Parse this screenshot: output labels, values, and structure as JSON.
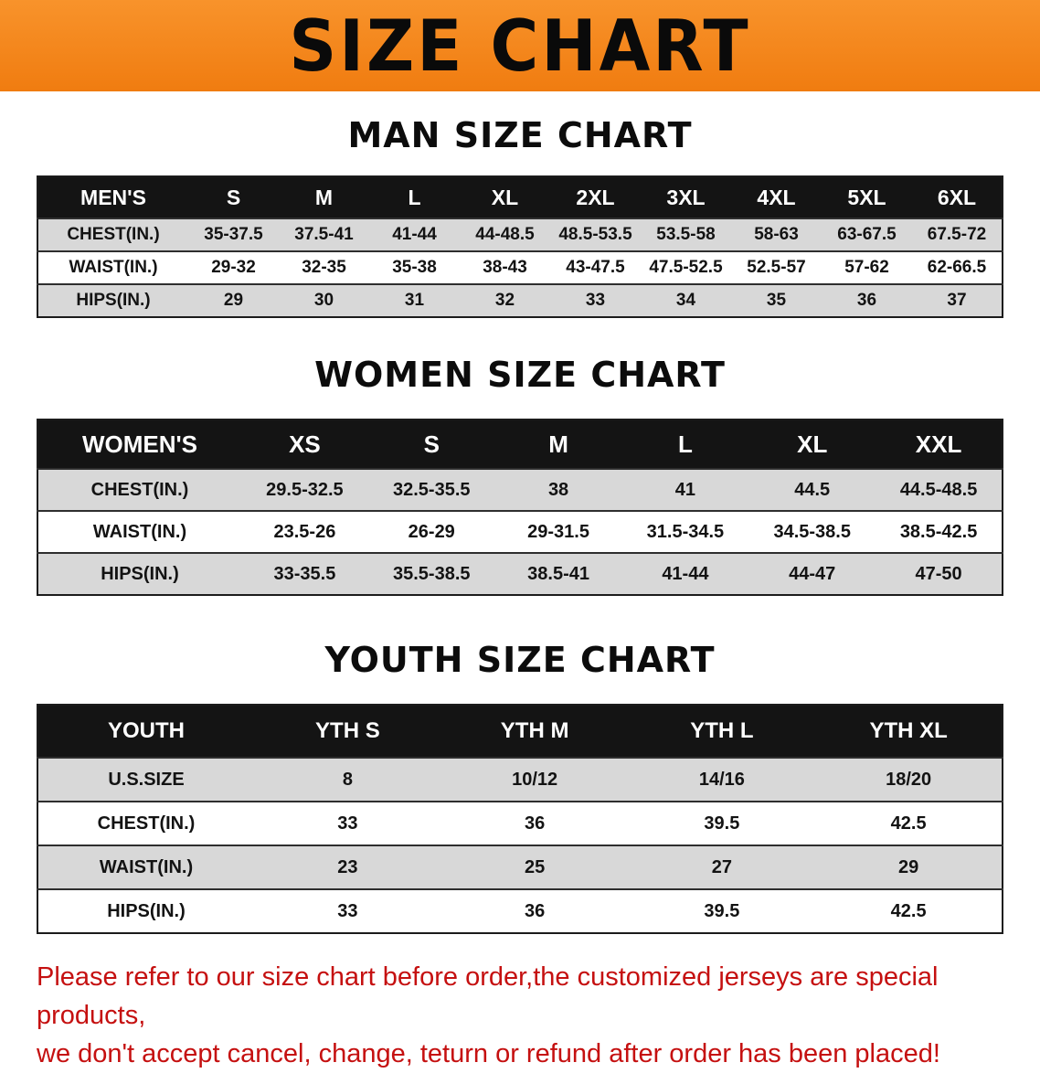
{
  "banner": {
    "title": "SIZE CHART"
  },
  "colors": {
    "banner_bg": "#f6861c",
    "table_header_bg": "#141414",
    "row_shade": "#d8d8d8",
    "note_red": "#c51010"
  },
  "tables": [
    {
      "heading": "MAN SIZE CHART",
      "corner": "MEN'S",
      "columns": [
        "S",
        "M",
        "L",
        "XL",
        "2XL",
        "3XL",
        "4XL",
        "5XL",
        "6XL"
      ],
      "rows": [
        {
          "label": "CHEST(IN.)",
          "values": [
            "35-37.5",
            "37.5-41",
            "41-44",
            "44-48.5",
            "48.5-53.5",
            "53.5-58",
            "58-63",
            "63-67.5",
            "67.5-72"
          ]
        },
        {
          "label": "WAIST(IN.)",
          "values": [
            "29-32",
            "32-35",
            "35-38",
            "38-43",
            "43-47.5",
            "47.5-52.5",
            "52.5-57",
            "57-62",
            "62-66.5"
          ]
        },
        {
          "label": "HIPS(IN.)",
          "values": [
            "29",
            "30",
            "31",
            "32",
            "33",
            "34",
            "35",
            "36",
            "37"
          ]
        }
      ]
    },
    {
      "heading": "WOMEN SIZE CHART",
      "corner": "WOMEN'S",
      "columns": [
        "XS",
        "S",
        "M",
        "L",
        "XL",
        "XXL"
      ],
      "rows": [
        {
          "label": "CHEST(IN.)",
          "values": [
            "29.5-32.5",
            "32.5-35.5",
            "38",
            "41",
            "44.5",
            "44.5-48.5"
          ]
        },
        {
          "label": "WAIST(IN.)",
          "values": [
            "23.5-26",
            "26-29",
            "29-31.5",
            "31.5-34.5",
            "34.5-38.5",
            "38.5-42.5"
          ]
        },
        {
          "label": "HIPS(IN.)",
          "values": [
            "33-35.5",
            "35.5-38.5",
            "38.5-41",
            "41-44",
            "44-47",
            "47-50"
          ]
        }
      ]
    },
    {
      "heading": "YOUTH SIZE CHART",
      "corner": "YOUTH",
      "columns": [
        "YTH S",
        "YTH M",
        "YTH L",
        "YTH XL"
      ],
      "rows": [
        {
          "label": "U.S.SIZE",
          "values": [
            "8",
            "10/12",
            "14/16",
            "18/20"
          ]
        },
        {
          "label": "CHEST(IN.)",
          "values": [
            "33",
            "36",
            "39.5",
            "42.5"
          ]
        },
        {
          "label": "WAIST(IN.)",
          "values": [
            "23",
            "25",
            "27",
            "29"
          ]
        },
        {
          "label": "HIPS(IN.)",
          "values": [
            "33",
            "36",
            "39.5",
            "42.5"
          ]
        }
      ]
    }
  ],
  "note": {
    "line1": "Please refer to our size chart before order,the customized jerseys are special products,",
    "line2": "we don't accept cancel, change, teturn or refund after order has been placed!"
  }
}
